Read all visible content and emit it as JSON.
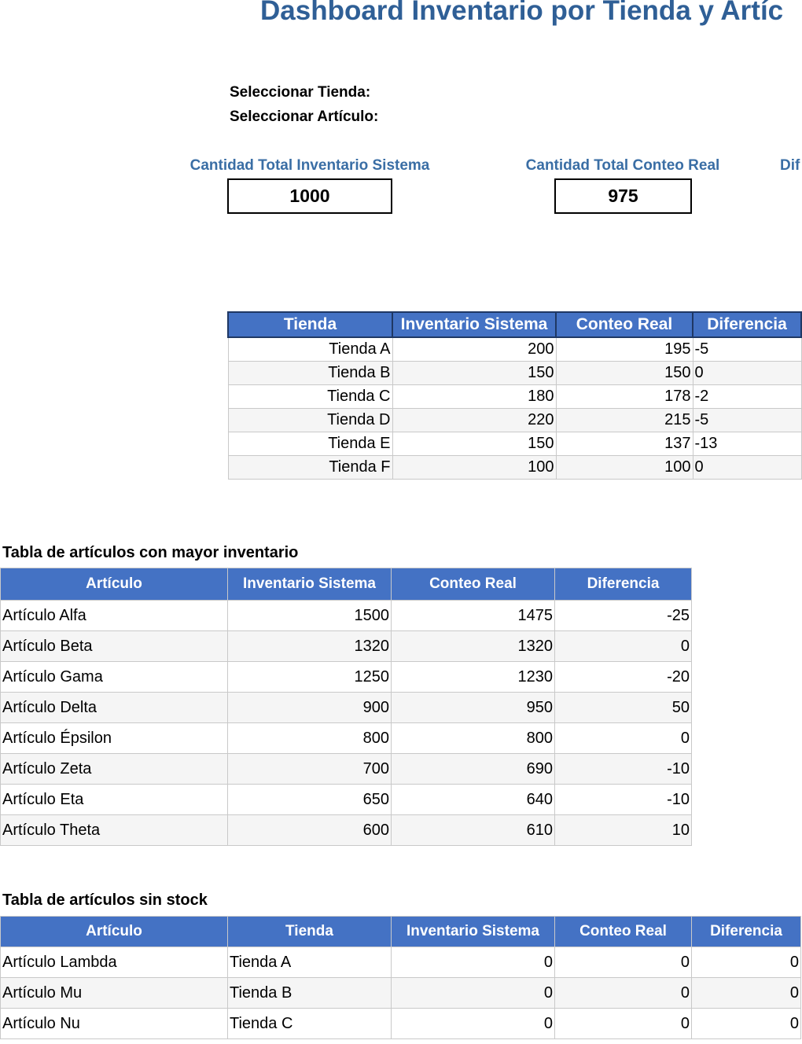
{
  "title": "Dashboard Inventario por Tienda y Artíc",
  "filters": {
    "store_label": "Seleccionar Tienda:",
    "article_label": "Seleccionar Artículo:"
  },
  "kpis": {
    "system_label": "Cantidad Total Inventario Sistema",
    "system_value": "1000",
    "count_label": "Cantidad Total Conteo Real",
    "count_value": "975",
    "diff_label_partial": "Dif"
  },
  "store_table": {
    "headers": [
      "Tienda",
      "Inventario Sistema",
      "Conteo Real",
      "Diferencia"
    ],
    "rows": [
      [
        "Tienda A",
        "200",
        "195",
        "-5"
      ],
      [
        "Tienda B",
        "150",
        "150",
        "0"
      ],
      [
        "Tienda C",
        "180",
        "178",
        "-2"
      ],
      [
        "Tienda D",
        "220",
        "215",
        "-5"
      ],
      [
        "Tienda E",
        "150",
        "137",
        "-13"
      ],
      [
        "Tienda F",
        "100",
        "100",
        "0"
      ]
    ]
  },
  "top_articles": {
    "title": "Tabla de artículos con mayor inventario",
    "headers": [
      "Artículo",
      "Inventario Sistema",
      "Conteo Real",
      "Diferencia"
    ],
    "rows": [
      [
        "Artículo Alfa",
        "1500",
        "1475",
        "-25"
      ],
      [
        "Artículo Beta",
        "1320",
        "1320",
        "0"
      ],
      [
        "Artículo Gama",
        "1250",
        "1230",
        "-20"
      ],
      [
        "Artículo Delta",
        "900",
        "950",
        "50"
      ],
      [
        "Artículo Épsilon",
        "800",
        "800",
        "0"
      ],
      [
        "Artículo Zeta",
        "700",
        "690",
        "-10"
      ],
      [
        "Artículo Eta",
        "650",
        "640",
        "-10"
      ],
      [
        "Artículo Theta",
        "600",
        "610",
        "10"
      ]
    ]
  },
  "no_stock": {
    "title": "Tabla de artículos sin stock",
    "headers": [
      "Artículo",
      "Tienda",
      "Inventario Sistema",
      "Conteo Real",
      "Diferencia"
    ],
    "rows": [
      [
        "Artículo Lambda",
        "Tienda A",
        "0",
        "0",
        "0"
      ],
      [
        "Artículo Mu",
        "Tienda B",
        "0",
        "0",
        "0"
      ],
      [
        "Artículo Nu",
        "Tienda C",
        "0",
        "0",
        "0"
      ]
    ]
  },
  "colors": {
    "header_bg": "#4472c4",
    "title": "#2f5f96",
    "kpi_label": "#3a6ea5"
  }
}
